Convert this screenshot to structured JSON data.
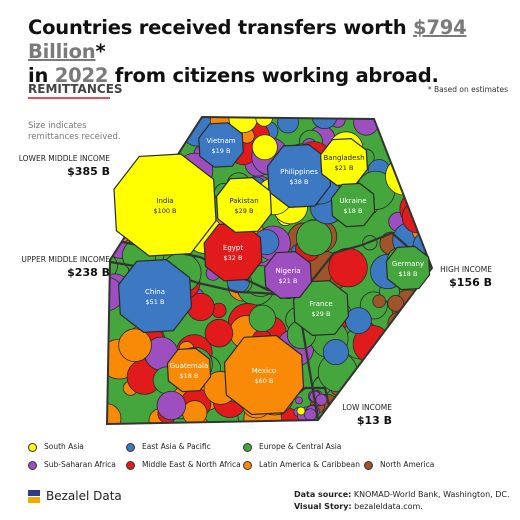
{
  "title": {
    "part1": "Countries received transfers worth ",
    "highlight": "$794 Billion",
    "asterisk": "*",
    "part2_pre": "in ",
    "year": "2022",
    "part2_post": " from citizens working abroad."
  },
  "subtitle": "REMITTANCES",
  "size_note": "Size indicates remittances received.",
  "estimate_note": "* Based on estimates",
  "income_groups": [
    {
      "name": "LOWER MIDDLE INCOME",
      "value": "$385 B"
    },
    {
      "name": "UPPER MIDDLE INCOME",
      "value": "$238 B"
    },
    {
      "name": "HIGH INCOME",
      "value": "$156 B"
    },
    {
      "name": "LOW INCOME",
      "value": "$13 B"
    }
  ],
  "legend": [
    {
      "label": "South Asia",
      "color": "#ffff00"
    },
    {
      "label": "East Asia & Pacific",
      "color": "#3d78c2"
    },
    {
      "label": "Europe & Central Asia",
      "color": "#44a63c"
    },
    {
      "label": "Sub-Saharan Africa",
      "color": "#9d4fbf"
    },
    {
      "label": "Middle East & North Africa",
      "color": "#e11b1b"
    },
    {
      "label": "Latin America & Caribbean",
      "color": "#f98a08"
    },
    {
      "label": "North America",
      "color": "#a0542a"
    }
  ],
  "brand": "Bezalel Data",
  "source_label": "Data source:",
  "source": "KNOMAD-World Bank, Washington, DC.",
  "story_label": "Visual Story:",
  "story": "bezaleldata.com.",
  "chart_data": {
    "type": "voronoi treemap",
    "unit": "B",
    "labeled_countries": [
      {
        "name": "India",
        "value": 100,
        "label": "$100 B",
        "region": "South Asia",
        "income_group": "LOWER MIDDLE INCOME"
      },
      {
        "name": "Mexico",
        "value": 60,
        "label": "$60 B",
        "region": "Latin America & Caribbean",
        "income_group": "UPPER MIDDLE INCOME"
      },
      {
        "name": "China",
        "value": 51,
        "label": "$51 B",
        "region": "East Asia & Pacific",
        "income_group": "UPPER MIDDLE INCOME"
      },
      {
        "name": "Philippines",
        "value": 38,
        "label": "$38 B",
        "region": "East Asia & Pacific",
        "income_group": "LOWER MIDDLE INCOME"
      },
      {
        "name": "Egypt",
        "value": 32,
        "label": "$32 B",
        "region": "Middle East & North Africa",
        "income_group": "LOWER MIDDLE INCOME"
      },
      {
        "name": "Pakistan",
        "value": 29,
        "label": "$29 B",
        "region": "South Asia",
        "income_group": "LOWER MIDDLE INCOME"
      },
      {
        "name": "France",
        "value": 29,
        "label": "$29 B",
        "region": "Europe & Central Asia",
        "income_group": "HIGH INCOME"
      },
      {
        "name": "Bangladesh",
        "value": 21,
        "label": "$21 B",
        "region": "South Asia",
        "income_group": "LOWER MIDDLE INCOME"
      },
      {
        "name": "Nigeria",
        "value": 21,
        "label": "$21 B",
        "region": "Sub-Saharan Africa",
        "income_group": "LOWER MIDDLE INCOME"
      },
      {
        "name": "Vietnam",
        "value": 19,
        "label": "$19 B",
        "region": "East Asia & Pacific",
        "income_group": "LOWER MIDDLE INCOME"
      },
      {
        "name": "Ukraine",
        "value": 18,
        "label": "$18 B",
        "region": "Europe & Central Asia",
        "income_group": "LOWER MIDDLE INCOME"
      },
      {
        "name": "Guatemala",
        "value": 18,
        "label": "$18 B",
        "region": "Latin America & Caribbean",
        "income_group": "UPPER MIDDLE INCOME"
      },
      {
        "name": "Germany",
        "value": 18,
        "label": "$18 B",
        "region": "Europe & Central Asia",
        "income_group": "HIGH INCOME"
      }
    ]
  }
}
